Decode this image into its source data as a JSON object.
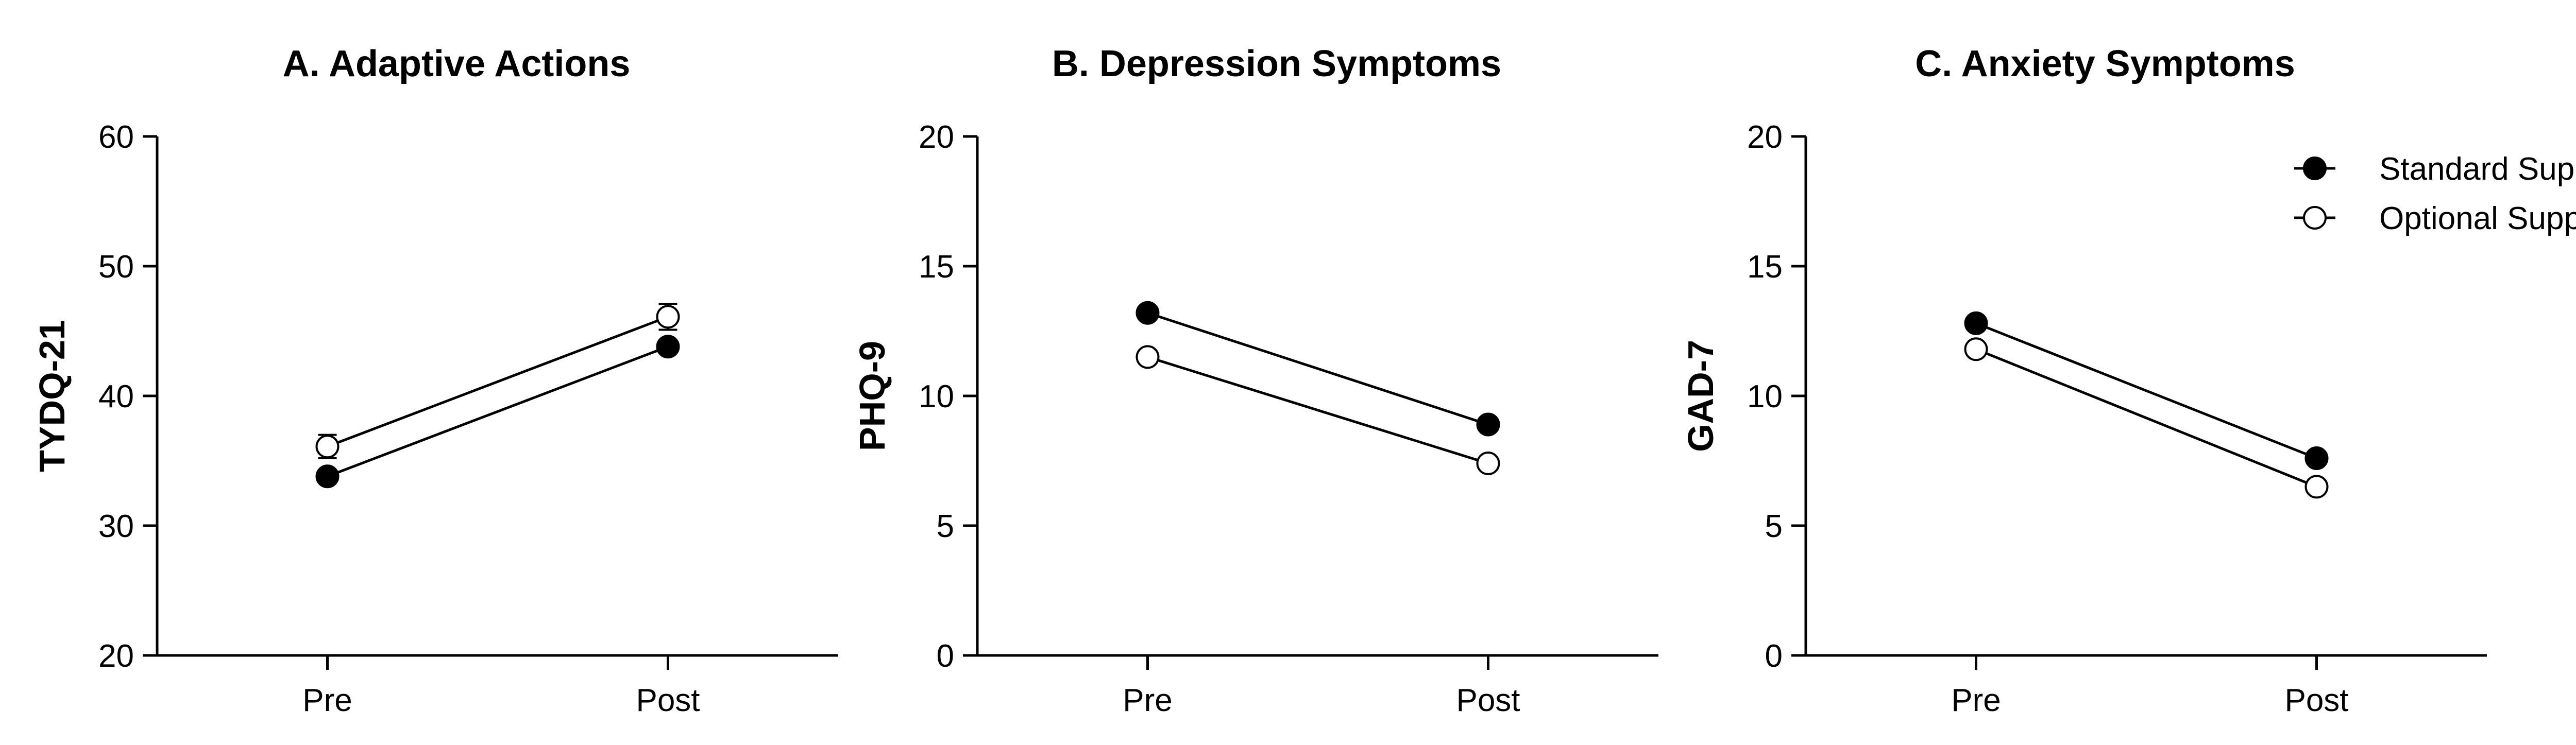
{
  "chart_data": [
    {
      "type": "line",
      "title": "A.  Adaptive Actions",
      "xlabel": "",
      "ylabel": "TYDQ-21",
      "categories": [
        "Pre",
        "Post"
      ],
      "ylim": [
        20,
        60
      ],
      "yticks": [
        20,
        30,
        40,
        50,
        60
      ],
      "series": [
        {
          "name": "Standard Support",
          "values": [
            33.8,
            43.8
          ],
          "errors": [
            0,
            0
          ]
        },
        {
          "name": "Optional Support",
          "values": [
            36.1,
            46.1
          ],
          "errors": [
            0.9,
            1.0
          ]
        }
      ]
    },
    {
      "type": "line",
      "title": "B. Depression Symptoms",
      "xlabel": "",
      "ylabel": "PHQ-9",
      "categories": [
        "Pre",
        "Post"
      ],
      "ylim": [
        0,
        20
      ],
      "yticks": [
        0,
        5,
        10,
        15,
        20
      ],
      "series": [
        {
          "name": "Standard Support",
          "values": [
            13.2,
            8.9
          ],
          "errors": [
            0,
            0
          ]
        },
        {
          "name": "Optional Support",
          "values": [
            11.5,
            7.4
          ],
          "errors": [
            0,
            0
          ]
        }
      ]
    },
    {
      "type": "line",
      "title": "C.  Anxiety Symptoms",
      "xlabel": "",
      "ylabel": "GAD-7",
      "categories": [
        "Pre",
        "Post"
      ],
      "ylim": [
        0,
        20
      ],
      "yticks": [
        0,
        5,
        10,
        15,
        20
      ],
      "series": [
        {
          "name": "Standard Support",
          "values": [
            12.8,
            7.6
          ],
          "errors": [
            0,
            0
          ]
        },
        {
          "name": "Optional Support",
          "values": [
            11.8,
            6.5
          ],
          "errors": [
            0,
            0
          ]
        }
      ]
    }
  ],
  "legend": {
    "placement": "top-right",
    "items": [
      {
        "name": "Standard Support",
        "marker": "filled-circle"
      },
      {
        "name": "Optional Support",
        "marker": "open-circle"
      }
    ]
  },
  "colors": {
    "ink": "#000000",
    "background": "#ffffff",
    "open_marker_fill": "#ffffff"
  }
}
